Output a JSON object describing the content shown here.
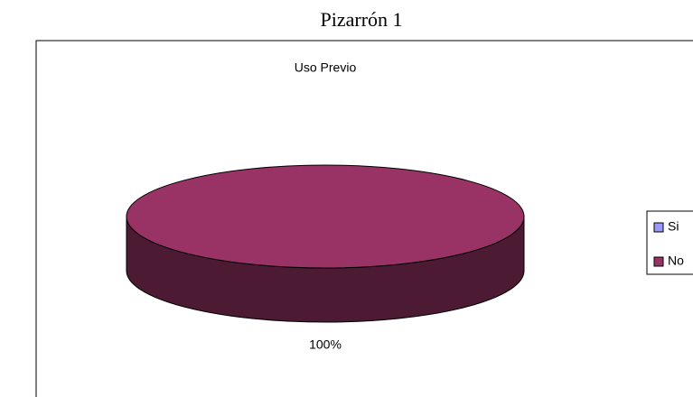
{
  "page_title": "Pizarrón 1",
  "chart_data": {
    "type": "pie",
    "title": "Uso Previo",
    "categories": [
      "Si",
      "No"
    ],
    "values": [
      0,
      100
    ],
    "value_labels": [
      null,
      "100%"
    ],
    "colors": [
      "#9999ff",
      "#993366"
    ],
    "legend": "right"
  }
}
